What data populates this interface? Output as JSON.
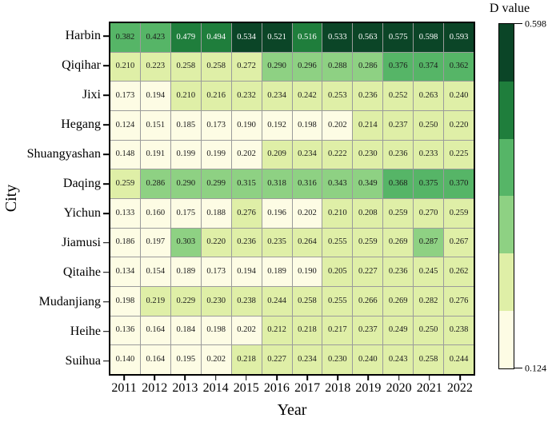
{
  "chart_data": {
    "type": "heatmap",
    "xlabel": "Year",
    "ylabel": "City",
    "colorbar": {
      "title": "D value",
      "max_label": "0.598",
      "min_label": "0.124",
      "min": 0.124,
      "max": 0.598
    },
    "columns": [
      "2011",
      "2012",
      "2013",
      "2014",
      "2015",
      "2016",
      "2017",
      "2018",
      "2019",
      "2020",
      "2021",
      "2022"
    ],
    "rows": [
      "Harbin",
      "Qiqihar",
      "Jixi",
      "Hegang",
      "Shuangyashan",
      "Daqing",
      "Yichun",
      "Jiamusi",
      "Qitaihe",
      "Mudanjiang",
      "Heihe",
      "Suihua"
    ],
    "values": [
      [
        0.382,
        0.423,
        0.479,
        0.494,
        0.534,
        0.521,
        0.516,
        0.533,
        0.563,
        0.575,
        0.598,
        0.593
      ],
      [
        0.21,
        0.223,
        0.258,
        0.258,
        0.272,
        0.29,
        0.296,
        0.288,
        0.286,
        0.376,
        0.374,
        0.362
      ],
      [
        0.173,
        0.194,
        0.21,
        0.216,
        0.232,
        0.234,
        0.242,
        0.253,
        0.236,
        0.252,
        0.263,
        0.24
      ],
      [
        0.124,
        0.151,
        0.185,
        0.173,
        0.19,
        0.192,
        0.198,
        0.202,
        0.214,
        0.237,
        0.25,
        0.22
      ],
      [
        0.148,
        0.191,
        0.199,
        0.199,
        0.202,
        0.209,
        0.234,
        0.222,
        0.23,
        0.236,
        0.233,
        0.225
      ],
      [
        0.259,
        0.286,
        0.29,
        0.299,
        0.315,
        0.318,
        0.316,
        0.343,
        0.349,
        0.368,
        0.375,
        0.37
      ],
      [
        0.133,
        0.16,
        0.175,
        0.188,
        0.276,
        0.196,
        0.202,
        0.21,
        0.208,
        0.259,
        0.27,
        0.259
      ],
      [
        0.186,
        0.197,
        0.303,
        0.22,
        0.236,
        0.235,
        0.264,
        0.255,
        0.259,
        0.269,
        0.287,
        0.267
      ],
      [
        0.134,
        0.154,
        0.189,
        0.173,
        0.194,
        0.189,
        0.19,
        0.205,
        0.227,
        0.236,
        0.245,
        0.262
      ],
      [
        0.198,
        0.219,
        0.229,
        0.23,
        0.238,
        0.244,
        0.258,
        0.255,
        0.266,
        0.269,
        0.282,
        0.276
      ],
      [
        0.136,
        0.164,
        0.184,
        0.198,
        0.202,
        0.212,
        0.218,
        0.217,
        0.237,
        0.249,
        0.25,
        0.238
      ],
      [
        0.14,
        0.164,
        0.195,
        0.202,
        0.218,
        0.227,
        0.234,
        0.23,
        0.24,
        0.243,
        0.258,
        0.244
      ]
    ],
    "decimals": 3,
    "color_scale": {
      "palette": [
        "#fdfce4",
        "#dfefa7",
        "#8ed183",
        "#56b567",
        "#1f7e3c",
        "#0b4527"
      ],
      "thresholds": [
        0.203,
        0.282,
        0.361,
        0.44,
        0.519
      ],
      "dark_text": "#1a1a1a",
      "light_text": "#ffffff",
      "light_text_from_level": 4
    },
    "grid_line_color": "#9b9b9b",
    "border_color": "#000000",
    "legend_position": "right",
    "grid": "discrete-cells"
  }
}
